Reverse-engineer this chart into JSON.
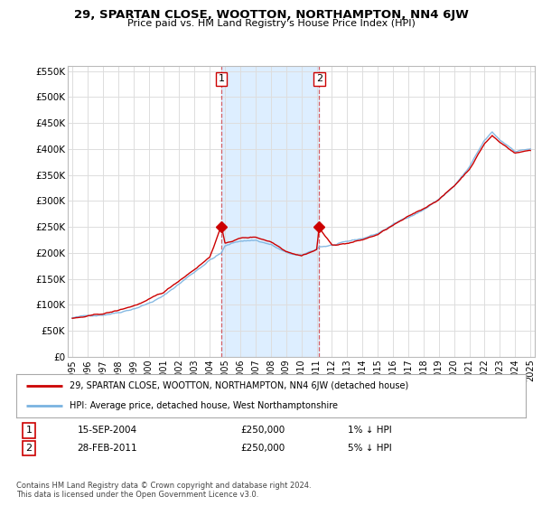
{
  "title": "29, SPARTAN CLOSE, WOOTTON, NORTHAMPTON, NN4 6JW",
  "subtitle": "Price paid vs. HM Land Registry's House Price Index (HPI)",
  "ylim": [
    0,
    560000
  ],
  "yticks": [
    0,
    50000,
    100000,
    150000,
    200000,
    250000,
    300000,
    350000,
    400000,
    450000,
    500000,
    550000
  ],
  "ytick_labels": [
    "£0",
    "£50K",
    "£100K",
    "£150K",
    "£200K",
    "£250K",
    "£300K",
    "£350K",
    "£400K",
    "£450K",
    "£500K",
    "£550K"
  ],
  "hpi_color": "#7ab3e0",
  "price_color": "#cc0000",
  "bg_color": "#ffffff",
  "plot_bg_color": "#ffffff",
  "grid_color": "#dddddd",
  "sale1_t": 9.75,
  "sale2_t": 16.17,
  "sale1_value": 250000,
  "sale2_value": 250000,
  "sale1_label": "1",
  "sale2_label": "2",
  "sale1_date_str": "15-SEP-2004",
  "sale2_date_str": "28-FEB-2011",
  "sale1_pct": "1% ↓ HPI",
  "sale2_pct": "5% ↓ HPI",
  "legend_line1": "29, SPARTAN CLOSE, WOOTTON, NORTHAMPTON, NN4 6JW (detached house)",
  "legend_line2": "HPI: Average price, detached house, West Northamptonshire",
  "footnote1": "Contains HM Land Registry data © Crown copyright and database right 2024.",
  "footnote2": "This data is licensed under the Open Government Licence v3.0.",
  "xtick_years": [
    "1995",
    "1996",
    "1997",
    "1998",
    "1999",
    "2000",
    "2001",
    "2002",
    "2003",
    "2004",
    "2005",
    "2006",
    "2007",
    "2008",
    "2009",
    "2010",
    "2011",
    "2012",
    "2013",
    "2014",
    "2015",
    "2016",
    "2017",
    "2018",
    "2019",
    "2020",
    "2021",
    "2022",
    "2023",
    "2024",
    "2025"
  ],
  "shade_color": "#ddeeff",
  "marker_size": 6
}
